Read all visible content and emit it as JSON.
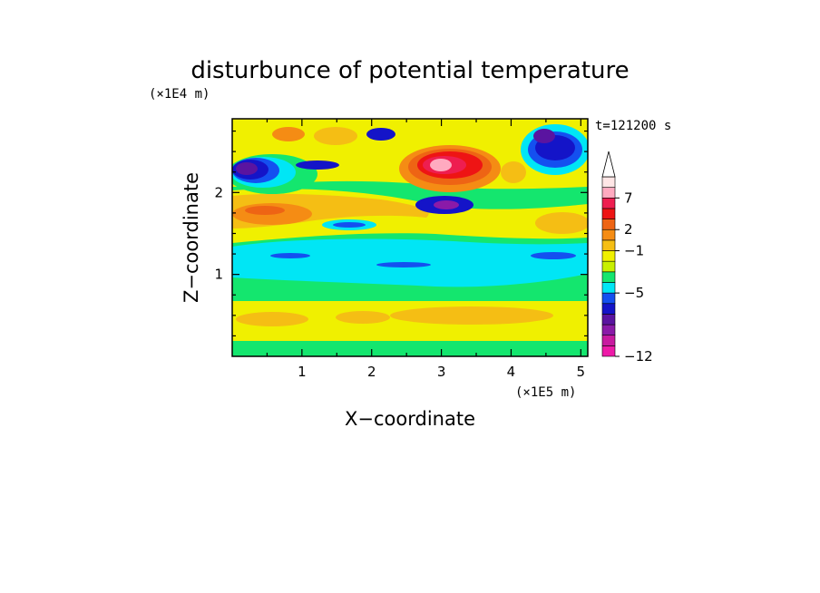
{
  "chart_data": {
    "type": "heatmap",
    "title": "disturbunce of potential temperature",
    "time_label": "t=121200 s",
    "xlabel": "X−coordinate",
    "ylabel": "Z−coordinate",
    "x_unit": "(×1E5 m)",
    "y_unit": "(×1E4 m)",
    "xlim": [
      0,
      5.1
    ],
    "ylim": [
      0,
      2.9
    ],
    "x_ticks": [
      "1",
      "2",
      "3",
      "4",
      "5"
    ],
    "y_ticks": [
      "1",
      "2"
    ],
    "grid": false,
    "colorbar": {
      "placement": "right",
      "extend_top": true,
      "colors": [
        "#ee1aa8",
        "#c81aa0",
        "#8a1aa8",
        "#5a14a0",
        "#1414c8",
        "#1450f0",
        "#00e6f5",
        "#14e66e",
        "#c8f000",
        "#f0f000",
        "#f5be14",
        "#f58c14",
        "#ee6414",
        "#ee1414",
        "#ee1e50",
        "#ffaac0",
        "#ffe6e6"
      ],
      "tick_labels": [
        "−12",
        "−5",
        "−1",
        "2",
        "7"
      ]
    }
  }
}
